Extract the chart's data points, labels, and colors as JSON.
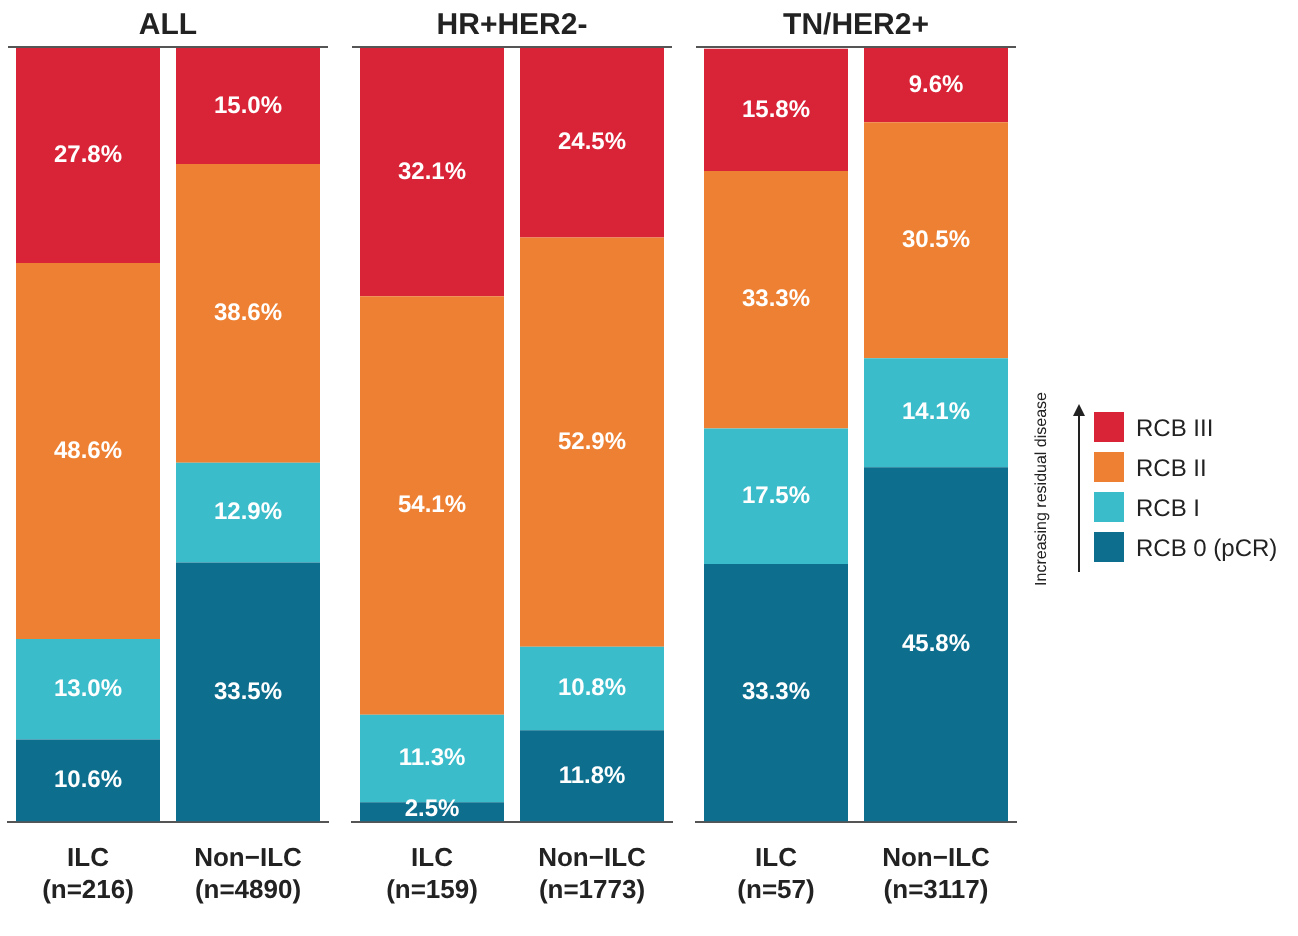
{
  "chart_data": [
    {
      "type": "bar",
      "title": "ALL",
      "categories": [
        "ILC\n(n=216)",
        "Non−ILC\n(n=4890)"
      ],
      "stacked": true,
      "ylim": [
        0,
        100
      ],
      "tick_labels": "x",
      "series": [
        {
          "color": "#0d6e8e",
          "values": [
            10.6,
            33.5
          ],
          "value_labels": [
            "10.6%",
            "33.5%"
          ]
        },
        {
          "color": "#3bbcca",
          "values": [
            13.0,
            12.9
          ],
          "value_labels": [
            "13.0%",
            "12.9%"
          ]
        },
        {
          "color": "#ee8033",
          "values": [
            48.6,
            38.6
          ],
          "value_labels": [
            "48.6%",
            "38.6%"
          ]
        },
        {
          "color": "#d92336",
          "values": [
            27.8,
            15.0
          ],
          "value_labels": [
            "27.8%",
            "15.0%"
          ]
        }
      ]
    },
    {
      "type": "bar",
      "title": "HR+HER2-",
      "categories": [
        "ILC\n(n=159)",
        "Non−ILC\n(n=1773)"
      ],
      "stacked": true,
      "ylim": [
        0,
        100
      ],
      "tick_labels": "x",
      "series": [
        {
          "color": "#0d6e8e",
          "values": [
            2.5,
            11.8
          ],
          "value_labels": [
            "2.5%",
            "11.8%"
          ]
        },
        {
          "color": "#3bbcca",
          "values": [
            11.3,
            10.8
          ],
          "value_labels": [
            "11.3%",
            "10.8%"
          ]
        },
        {
          "color": "#ee8033",
          "values": [
            54.1,
            52.9
          ],
          "value_labels": [
            "54.1%",
            "52.9%"
          ]
        },
        {
          "color": "#d92336",
          "values": [
            32.1,
            24.5
          ],
          "value_labels": [
            "32.1%",
            "24.5%"
          ]
        }
      ]
    },
    {
      "type": "bar",
      "title": "TN/HER2+",
      "categories": [
        "ILC\n(n=57)",
        "Non−ILC\n(n=3117)"
      ],
      "stacked": true,
      "ylim": [
        0,
        100
      ],
      "tick_labels": "x",
      "legend": "right",
      "annotations": [
        "Increasing residual disease"
      ],
      "series": [
        {
          "name": "RCB 0 (pCR)",
          "color": "#0d6e8e",
          "values": [
            33.3,
            45.8
          ],
          "value_labels": [
            "33.3%",
            "45.8%"
          ]
        },
        {
          "name": "RCB I",
          "color": "#3bbcca",
          "values": [
            17.5,
            14.1
          ],
          "value_labels": [
            "17.5%",
            "14.1%"
          ]
        },
        {
          "name": "RCB II",
          "color": "#ee8033",
          "values": [
            33.3,
            30.5
          ],
          "value_labels": [
            "33.3%",
            "30.5%"
          ]
        },
        {
          "name": "RCB III",
          "color": "#d92336",
          "values": [
            15.8,
            9.6
          ],
          "value_labels": [
            "15.8%",
            "9.6%"
          ]
        }
      ]
    }
  ]
}
